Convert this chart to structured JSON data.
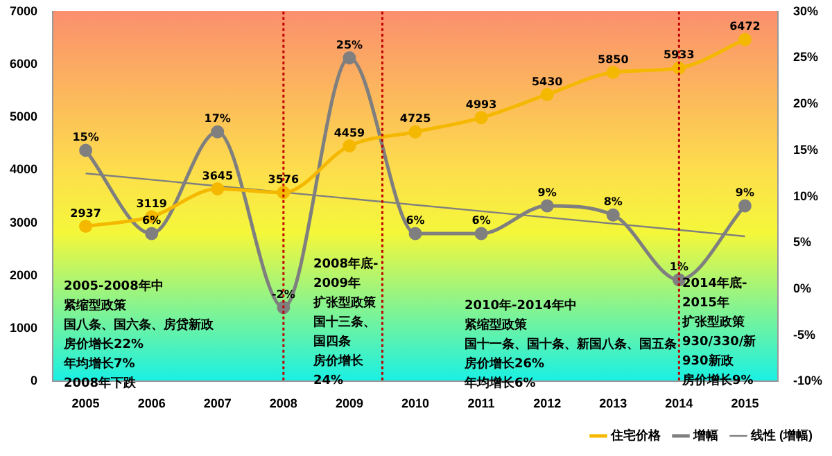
{
  "chart_data": {
    "type": "line",
    "x": [
      2005,
      2006,
      2007,
      2008,
      2009,
      2010,
      2011,
      2012,
      2013,
      2014,
      2015
    ],
    "xlim": [
      2004.5,
      2015.5
    ],
    "xticks": [
      2005,
      2006,
      2007,
      2008,
      2009,
      2010,
      2011,
      2012,
      2013,
      2014,
      2015
    ],
    "ylim": [
      0,
      7000
    ],
    "yticks": [
      0,
      1000,
      2000,
      3000,
      4000,
      5000,
      6000,
      7000
    ],
    "y2lim": [
      -10,
      30
    ],
    "y2ticks": [
      {
        "value": -10,
        "label": "-10%"
      },
      {
        "value": -5,
        "label": "-5%"
      },
      {
        "value": 0,
        "label": "0%"
      },
      {
        "value": 5,
        "label": "5%"
      },
      {
        "value": 10,
        "label": "10%"
      },
      {
        "value": 15,
        "label": "15%"
      },
      {
        "value": 20,
        "label": "20%"
      },
      {
        "value": 25,
        "label": "25%"
      },
      {
        "value": 30,
        "label": "30%"
      }
    ],
    "series": [
      {
        "name": "住宅价格",
        "color": "#f5b800",
        "values": [
          2937,
          3119,
          3645,
          3576,
          4459,
          4725,
          4993,
          5430,
          5850,
          5933,
          6472
        ],
        "value_labels": [
          "2937",
          "3119",
          "3645",
          "3576",
          "4459",
          "4725",
          "4993",
          "5430",
          "5850",
          "5933",
          "6472"
        ]
      },
      {
        "name": "增幅",
        "color": "#7f7f7f",
        "axis": "y2",
        "values": [
          15,
          6,
          17,
          -2,
          25,
          6,
          6,
          9,
          8,
          1,
          9
        ],
        "value_labels": [
          "15%",
          "6%",
          "17%",
          "-2%",
          "25%",
          "6%",
          "6%",
          "9%",
          "8%",
          "1%",
          "9%"
        ]
      },
      {
        "name": "线性 (增幅)",
        "color": "#7f7f7f",
        "axis": "y2",
        "type": "line",
        "marker": "none",
        "x": [
          2005,
          2015
        ],
        "values": [
          12.5,
          5.7
        ]
      }
    ],
    "ref_lines": [
      {
        "axis": "x",
        "value": 2008,
        "color": "#c00000",
        "line_style": "dotted"
      },
      {
        "axis": "x",
        "value": 2009.5,
        "color": "#c00000",
        "line_style": "dotted"
      },
      {
        "axis": "x",
        "value": 2014,
        "color": "#c00000",
        "line_style": "dotted"
      }
    ],
    "annotations": [
      "2005-2008年中",
      "紧缩型政策",
      "国八条、国六条、房贷新政",
      "房价增长22%",
      "年均增长7%",
      "2008年下跌",
      "2008年底-",
      "2009年",
      "扩张型政策",
      "国十三条、",
      "国四条",
      "房价增长",
      "24%",
      "2010年-2014年中",
      "紧缩型政策",
      "国十一条、国十条、新国八条、国五条",
      "房价增长26%",
      "年均增长6%",
      "2014年底-",
      "2015年",
      "扩张型政策",
      "930/330/新",
      "930新政",
      "房价增长9%"
    ],
    "grid": false,
    "legend": "bottom",
    "marker": "circle"
  }
}
